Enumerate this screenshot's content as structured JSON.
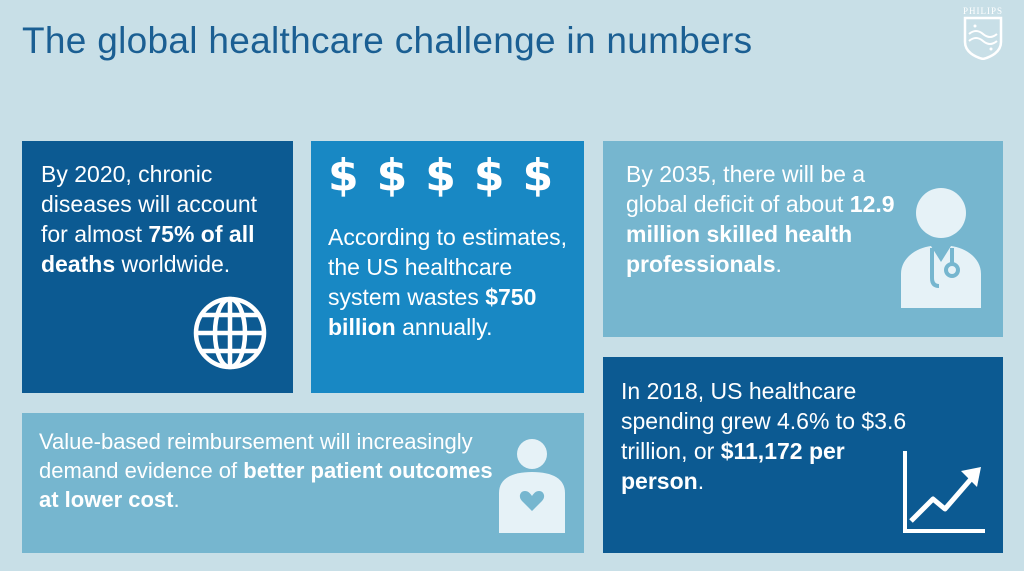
{
  "title": "The global healthcare challenge in numbers",
  "logo": {
    "word": "PHILIPS",
    "icon": "philips-shield-icon"
  },
  "tiles": {
    "chronic": {
      "text_before": "By 2020, chronic diseases will account for almost ",
      "bold": "75% of all deaths",
      "text_after": " worldwide.",
      "icon": "globe-icon"
    },
    "waste": {
      "symbols": [
        "$",
        "$",
        "$",
        "$",
        "$"
      ],
      "text_before": "According to estimates, the US healthcare system wastes ",
      "bold": "$750 billion",
      "text_after": " annually."
    },
    "deficit": {
      "text_before": "By 2035, there will be a global deficit of about ",
      "bold": "12.9 million skilled health professionals",
      "text_after": ".",
      "icon": "doctor-icon"
    },
    "value": {
      "text_before": "Value-based reimbursement will increasingly demand evidence of ",
      "bold": "better patient outcomes at lower cost",
      "text_after": ".",
      "icon": "patient-heart-icon"
    },
    "spending": {
      "text_before": "In 2018, US healthcare spending grew 4.6% to $3.6 trillion, or ",
      "bold": "$11,172 per person",
      "text_after": ".",
      "icon": "growth-chart-icon"
    }
  },
  "colors": {
    "background": "#c8dfe7",
    "title": "#1b5f93",
    "dark_blue": "#0c5a92",
    "mid_blue": "#1888c4",
    "light_blue": "#76b6cf"
  }
}
